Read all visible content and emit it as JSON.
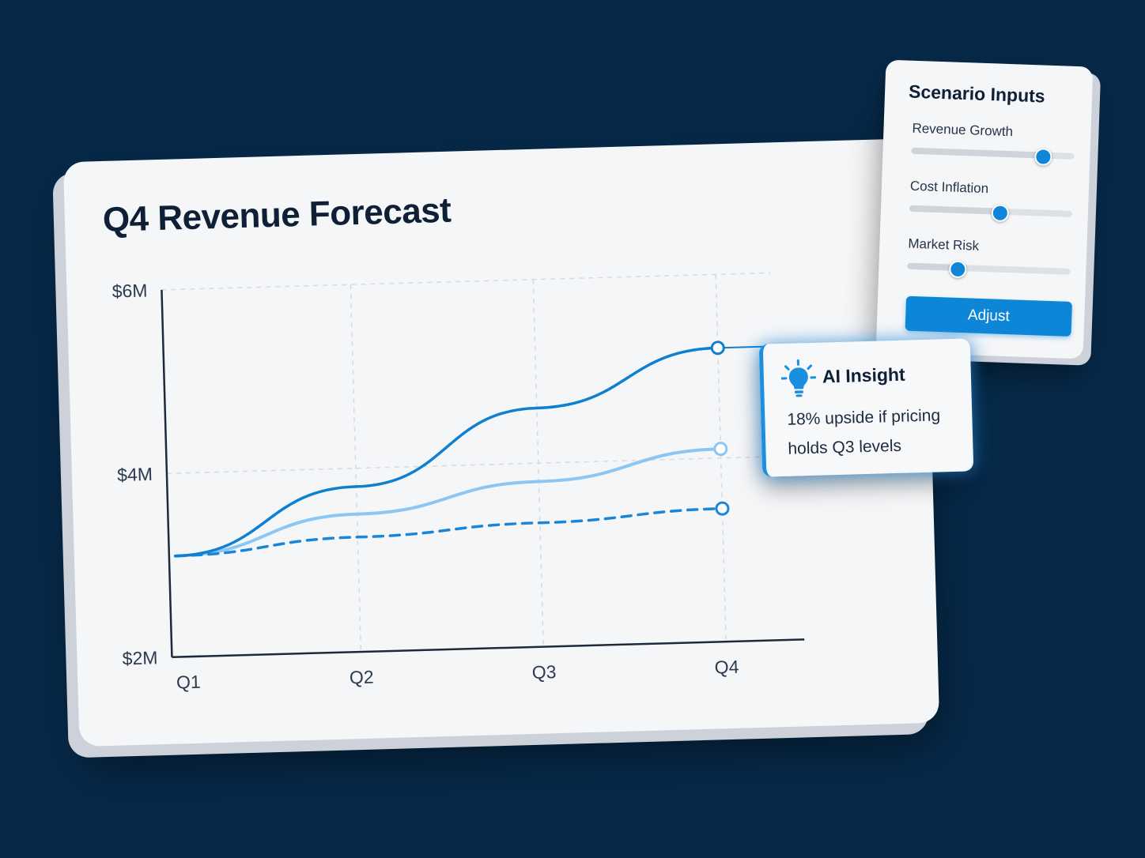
{
  "chart_card": {
    "title": "Q4 Revenue Forecast"
  },
  "chart_data": {
    "type": "line",
    "title": "Q4 Revenue Forecast",
    "categories": [
      "Q1",
      "Q2",
      "Q3",
      "Q4"
    ],
    "y_ticks": [
      "$2M",
      "$4M",
      "$6M"
    ],
    "ylim": [
      2,
      6
    ],
    "y_unit": "$M",
    "grid": true,
    "series": [
      {
        "values": [
          3.1,
          3.8,
          4.6,
          5.2
        ],
        "style": "solid",
        "color": "#0f7fd0"
      },
      {
        "values": [
          3.1,
          3.5,
          3.8,
          4.1
        ],
        "style": "solid",
        "color": "#8cc6f2"
      },
      {
        "values": [
          3.1,
          3.25,
          3.35,
          3.45
        ],
        "style": "dashed",
        "color": "#1a86d8"
      }
    ]
  },
  "scenario_panel": {
    "title": "Scenario Inputs",
    "sliders": [
      {
        "label": "Revenue Growth",
        "value": 0.8
      },
      {
        "label": "Cost Inflation",
        "value": 0.55
      },
      {
        "label": "Market Risk",
        "value": 0.3
      }
    ],
    "button_label": "Adjust"
  },
  "insight": {
    "icon": "lightbulb-icon",
    "title": "AI Insight",
    "text": "18% upside if pricing holds Q3 levels"
  },
  "colors": {
    "background": "#072a4a",
    "accent": "#0e86d8",
    "card": "#f5f6f8",
    "text": "#0e1f36"
  }
}
